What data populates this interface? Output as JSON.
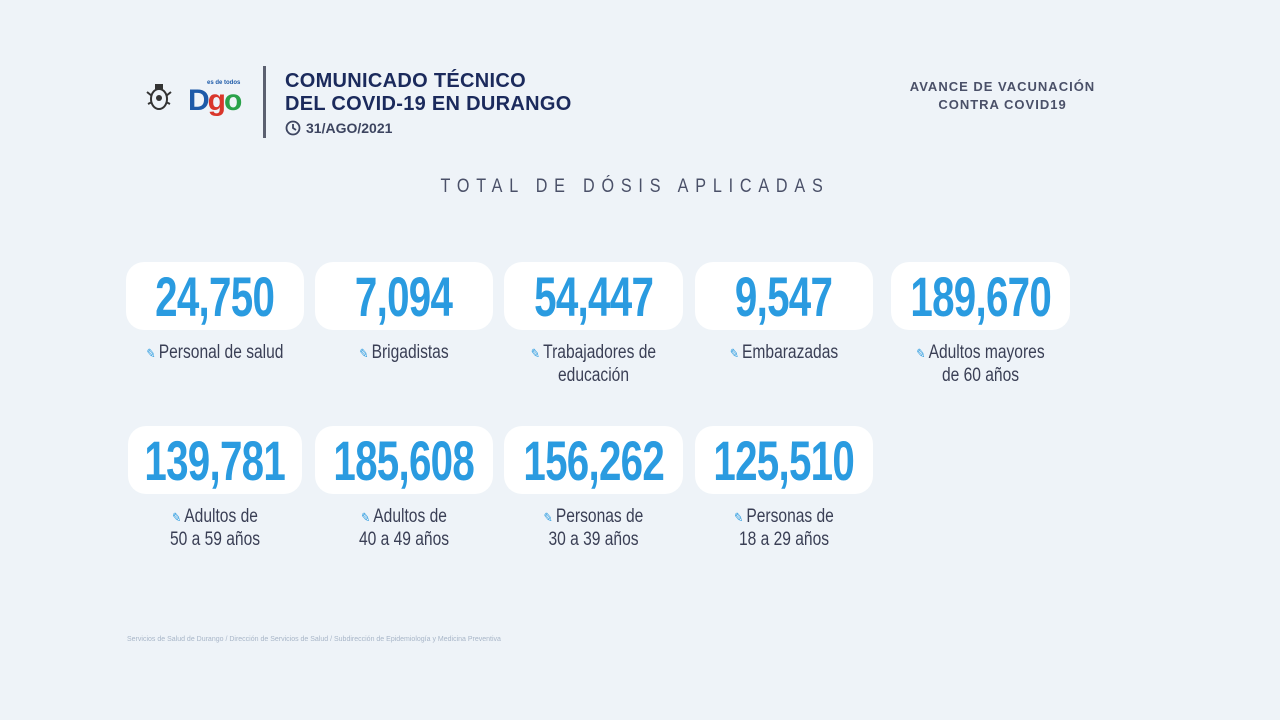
{
  "header": {
    "logo_text": "Dgo",
    "logo_tagline": "es de todos",
    "title_line1": "COMUNICADO TÉCNICO",
    "title_line2": "DEL COVID-19 EN DURANGO",
    "date": "31/AGO/2021",
    "right_line1": "AVANCE DE VACUNACIÓN",
    "right_line2": "CONTRA COVID19"
  },
  "section_title": "TOTAL DE DÓSIS APLICADAS",
  "stats": [
    {
      "value": "24,750",
      "label1": "Personal de salud",
      "label2": ""
    },
    {
      "value": "7,094",
      "label1": "Brigadistas",
      "label2": ""
    },
    {
      "value": "54,447",
      "label1": "Trabajadores de",
      "label2": "educación"
    },
    {
      "value": "9,547",
      "label1": "Embarazadas",
      "label2": ""
    },
    {
      "value": "189,670",
      "label1": "Adultos mayores",
      "label2": "de 60 años"
    },
    {
      "value": "139,781",
      "label1": "Adultos de",
      "label2": "50 a 59 años"
    },
    {
      "value": "185,608",
      "label1": "Adultos de",
      "label2": "40 a 49 años"
    },
    {
      "value": "156,262",
      "label1": "Personas de",
      "label2": "30 a 39 años"
    },
    {
      "value": "125,510",
      "label1": "Personas de",
      "label2": "18 a 29 años"
    }
  ],
  "footer": "Servicios de Salud de Durango / Dirección de Servicios de Salud / Subdirección de Epidemiología y Medicina Preventiva",
  "colors": {
    "accent": "#2a9be0",
    "title": "#1b2a5c",
    "background": "#eef3f8"
  }
}
